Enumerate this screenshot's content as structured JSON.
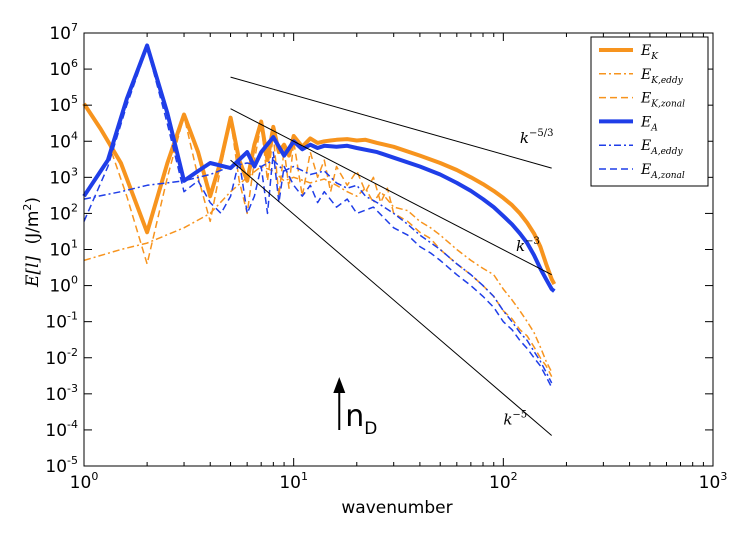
{
  "chart_data": {
    "type": "line",
    "xscale": "log",
    "yscale": "log",
    "xlabel": "wavenumber",
    "ylabel_math": "E[l]",
    "ylabel_unit": "(J/m",
    "ylabel_unit_exp": "2",
    "ylabel_unit_close": ")",
    "xlim": [
      1,
      1000
    ],
    "ylim": [
      1e-05,
      10000000.0
    ],
    "x_ticks": [
      {
        "value": 1,
        "base": "10",
        "exp": "0"
      },
      {
        "value": 10,
        "base": "10",
        "exp": "1"
      },
      {
        "value": 100,
        "base": "10",
        "exp": "2"
      },
      {
        "value": 1000,
        "base": "10",
        "exp": "3"
      }
    ],
    "y_ticks": [
      {
        "value": 1e-05,
        "base": "10",
        "exp": "-5"
      },
      {
        "value": 0.0001,
        "base": "10",
        "exp": "-4"
      },
      {
        "value": 0.001,
        "base": "10",
        "exp": "-3"
      },
      {
        "value": 0.01,
        "base": "10",
        "exp": "-2"
      },
      {
        "value": 0.1,
        "base": "10",
        "exp": "-1"
      },
      {
        "value": 1,
        "base": "10",
        "exp": "0"
      },
      {
        "value": 10,
        "base": "10",
        "exp": "1"
      },
      {
        "value": 100,
        "base": "10",
        "exp": "2"
      },
      {
        "value": 1000,
        "base": "10",
        "exp": "3"
      },
      {
        "value": 10000,
        "base": "10",
        "exp": "4"
      },
      {
        "value": 100000,
        "base": "10",
        "exp": "5"
      },
      {
        "value": 1000000,
        "base": "10",
        "exp": "6"
      },
      {
        "value": 10000000,
        "base": "10",
        "exp": "7"
      }
    ],
    "legend_position": "top-right",
    "series": [
      {
        "key": "ek",
        "name_base": "E",
        "name_sub": "K",
        "color": "#f7941e",
        "style": "solid",
        "width": 4,
        "points": [
          [
            1,
            110000.0
          ],
          [
            1.2,
            22000.0
          ],
          [
            1.5,
            2500.0
          ],
          [
            2,
            30
          ],
          [
            2.5,
            2500.0
          ],
          [
            3,
            55000.0
          ],
          [
            3.5,
            5000.0
          ],
          [
            4,
            300
          ],
          [
            4.5,
            3000.0
          ],
          [
            5,
            45000.0
          ],
          [
            5.5,
            3000.0
          ],
          [
            6,
            800
          ],
          [
            6.5,
            8000.0
          ],
          [
            7,
            35000.0
          ],
          [
            7.5,
            3000.0
          ],
          [
            8,
            25000.0
          ],
          [
            8.5,
            5000.0
          ],
          [
            9,
            8000.0
          ],
          [
            9.5,
            4000.0
          ],
          [
            10,
            14000.0
          ],
          [
            11,
            7000.0
          ],
          [
            12,
            12000.0
          ],
          [
            13,
            9000.0
          ],
          [
            14,
            10000.0
          ],
          [
            15,
            10500.0
          ],
          [
            16,
            11000.0
          ],
          [
            18,
            11500.0
          ],
          [
            20,
            10500.0
          ],
          [
            22,
            11000.0
          ],
          [
            25,
            9000.0
          ],
          [
            30,
            7000.0
          ],
          [
            40,
            4000.0
          ],
          [
            50,
            2500.0
          ],
          [
            60,
            1600.0
          ],
          [
            70,
            1000.0
          ],
          [
            80,
            650
          ],
          [
            90,
            420
          ],
          [
            100,
            270
          ],
          [
            110,
            170
          ],
          [
            120,
            100
          ],
          [
            130,
            55
          ],
          [
            140,
            28
          ],
          [
            150,
            12
          ],
          [
            160,
            4
          ],
          [
            170,
            1.5
          ],
          [
            175,
            1.1
          ]
        ]
      },
      {
        "key": "ek_eddy",
        "name_base": "E",
        "name_sub": "K,eddy",
        "color": "#f7941e",
        "style": "dashdot",
        "width": 1.5,
        "points": [
          [
            1,
            5
          ],
          [
            1.5,
            10
          ],
          [
            2,
            15
          ],
          [
            3,
            40
          ],
          [
            4,
            100
          ],
          [
            5,
            400
          ],
          [
            6,
            1000.0
          ],
          [
            7,
            2000.0
          ],
          [
            8,
            1500.0
          ],
          [
            9,
            800
          ],
          [
            10,
            1000.0
          ],
          [
            12,
            700
          ],
          [
            14,
            900
          ],
          [
            16,
            600
          ],
          [
            18,
            400
          ],
          [
            20,
            300
          ],
          [
            22,
            500
          ],
          [
            24,
            200
          ],
          [
            26,
            400
          ],
          [
            30,
            150
          ],
          [
            35,
            120
          ],
          [
            40,
            60
          ],
          [
            45,
            40
          ],
          [
            50,
            25
          ],
          [
            60,
            10
          ],
          [
            70,
            5
          ],
          [
            80,
            3
          ],
          [
            90,
            2
          ],
          [
            100,
            0.8
          ],
          [
            110,
            0.4
          ],
          [
            120,
            0.2
          ],
          [
            130,
            0.1
          ],
          [
            140,
            0.05
          ],
          [
            150,
            0.02
          ],
          [
            160,
            0.008
          ],
          [
            170,
            0.004
          ]
        ]
      },
      {
        "key": "ek_zonal",
        "name_base": "E",
        "name_sub": "K,zonal",
        "color": "#f7941e",
        "style": "dashed",
        "width": 1.5,
        "points": [
          [
            1,
            100000.0
          ],
          [
            1.3,
            10000.0
          ],
          [
            1.6,
            300
          ],
          [
            2,
            4
          ],
          [
            2.5,
            1000.0
          ],
          [
            3,
            50000.0
          ],
          [
            3.5,
            1000.0
          ],
          [
            4,
            60
          ],
          [
            4.5,
            2000.0
          ],
          [
            5,
            40000.0
          ],
          [
            5.5,
            800
          ],
          [
            6,
            100
          ],
          [
            6.5,
            3000.0
          ],
          [
            7,
            30000.0
          ],
          [
            7.5,
            800
          ],
          [
            8,
            15000.0
          ],
          [
            8.5,
            300
          ],
          [
            9,
            6000.0
          ],
          [
            9.5,
            500
          ],
          [
            10,
            10000.0
          ],
          [
            11,
            300
          ],
          [
            12,
            5000.0
          ],
          [
            13,
            1000.0
          ],
          [
            14,
            3000.0
          ],
          [
            15,
            400
          ],
          [
            16,
            2000.0
          ],
          [
            18,
            600
          ],
          [
            20,
            1500.0
          ],
          [
            22,
            400
          ],
          [
            24,
            1000.0
          ],
          [
            26,
            200
          ],
          [
            28,
            500
          ],
          [
            30,
            100
          ],
          [
            35,
            60
          ],
          [
            40,
            30
          ],
          [
            45,
            20
          ],
          [
            50,
            10
          ],
          [
            60,
            4
          ],
          [
            70,
            2
          ],
          [
            80,
            1
          ],
          [
            90,
            0.5
          ],
          [
            100,
            0.2
          ],
          [
            110,
            0.12
          ],
          [
            120,
            0.06
          ],
          [
            130,
            0.04
          ],
          [
            140,
            0.02
          ],
          [
            150,
            0.01
          ],
          [
            160,
            0.006
          ],
          [
            170,
            0.003
          ]
        ]
      },
      {
        "key": "ea",
        "name_base": "E",
        "name_sub": "A",
        "color": "#1f3ee8",
        "style": "solid",
        "width": 4,
        "points": [
          [
            1,
            300
          ],
          [
            1.3,
            3000.0
          ],
          [
            1.6,
            150000.0
          ],
          [
            2,
            4500000.0
          ],
          [
            2.5,
            60000.0
          ],
          [
            3,
            800
          ],
          [
            3.5,
            1500.0
          ],
          [
            4,
            2500.0
          ],
          [
            5,
            1800.0
          ],
          [
            6,
            5000.0
          ],
          [
            6.5,
            2000.0
          ],
          [
            7,
            5000.0
          ],
          [
            8,
            13000.0
          ],
          [
            9,
            4000.0
          ],
          [
            10,
            10000.0
          ],
          [
            11,
            6000.0
          ],
          [
            12,
            8000.0
          ],
          [
            13,
            6500.0
          ],
          [
            14,
            7500.0
          ],
          [
            16,
            7000.0
          ],
          [
            18,
            7500.0
          ],
          [
            20,
            6500.0
          ],
          [
            25,
            5000.0
          ],
          [
            30,
            3500.0
          ],
          [
            40,
            2000.0
          ],
          [
            50,
            1200.0
          ],
          [
            60,
            700
          ],
          [
            70,
            420
          ],
          [
            80,
            250
          ],
          [
            90,
            150
          ],
          [
            100,
            85
          ],
          [
            110,
            50
          ],
          [
            120,
            28
          ],
          [
            130,
            15
          ],
          [
            140,
            7
          ],
          [
            150,
            3
          ],
          [
            160,
            1.5
          ],
          [
            170,
            0.8
          ],
          [
            175,
            0.7
          ]
        ]
      },
      {
        "key": "ea_eddy",
        "name_base": "E",
        "name_sub": "A,eddy",
        "color": "#1f3ee8",
        "style": "dashdot",
        "width": 1.5,
        "points": [
          [
            1,
            250
          ],
          [
            1.5,
            400
          ],
          [
            2,
            600
          ],
          [
            3,
            800
          ],
          [
            4,
            1200.0
          ],
          [
            5,
            2000.0
          ],
          [
            6,
            2500.0
          ],
          [
            7,
            2000.0
          ],
          [
            8,
            3000.0
          ],
          [
            9,
            1500.0
          ],
          [
            10,
            2000.0
          ],
          [
            12,
            1200.0
          ],
          [
            14,
            1500.0
          ],
          [
            16,
            700
          ],
          [
            18,
            500
          ],
          [
            20,
            600
          ],
          [
            22,
            300
          ],
          [
            25,
            200
          ],
          [
            30,
            100
          ],
          [
            35,
            50
          ],
          [
            40,
            25
          ],
          [
            50,
            10
          ],
          [
            60,
            4
          ],
          [
            70,
            2
          ],
          [
            80,
            1
          ],
          [
            90,
            0.5
          ],
          [
            100,
            0.2
          ],
          [
            110,
            0.1
          ],
          [
            120,
            0.05
          ],
          [
            130,
            0.03
          ],
          [
            140,
            0.015
          ],
          [
            150,
            0.008
          ],
          [
            160,
            0.004
          ],
          [
            170,
            0.002
          ]
        ]
      },
      {
        "key": "ea_zonal",
        "name_base": "E",
        "name_sub": "A,zonal",
        "color": "#1f3ee8",
        "style": "dashed",
        "width": 1.5,
        "points": [
          [
            1,
            60
          ],
          [
            1.3,
            2000.0
          ],
          [
            1.6,
            100000.0
          ],
          [
            2,
            4000000.0
          ],
          [
            2.5,
            30000.0
          ],
          [
            3,
            400
          ],
          [
            3.5,
            800
          ],
          [
            4,
            200
          ],
          [
            4.5,
            100
          ],
          [
            5,
            300
          ],
          [
            5.5,
            3000.0
          ],
          [
            6,
            100
          ],
          [
            6.5,
            300
          ],
          [
            7,
            2000.0
          ],
          [
            7.5,
            100
          ],
          [
            8,
            5000.0
          ],
          [
            8.5,
            200
          ],
          [
            9,
            2000.0
          ],
          [
            10,
            600
          ],
          [
            11,
            300
          ],
          [
            12,
            600
          ],
          [
            13,
            200
          ],
          [
            14,
            400
          ],
          [
            16,
            150
          ],
          [
            18,
            250
          ],
          [
            20,
            100
          ],
          [
            24,
            150
          ],
          [
            28,
            60
          ],
          [
            30,
            40
          ],
          [
            35,
            25
          ],
          [
            40,
            12
          ],
          [
            45,
            8
          ],
          [
            50,
            5
          ],
          [
            60,
            2
          ],
          [
            70,
            1
          ],
          [
            80,
            0.5
          ],
          [
            90,
            0.25
          ],
          [
            100,
            0.1
          ],
          [
            110,
            0.06
          ],
          [
            120,
            0.03
          ],
          [
            130,
            0.018
          ],
          [
            140,
            0.01
          ],
          [
            150,
            0.006
          ],
          [
            160,
            0.003
          ],
          [
            170,
            0.0015
          ]
        ]
      }
    ],
    "reference_lines": [
      {
        "key": "k53",
        "x": [
          5,
          170
        ],
        "y": [
          600000.0,
          1800.0
        ],
        "label_base": "k",
        "label_exp": "−5/3",
        "label_at": [
          120,
          9000.0
        ]
      },
      {
        "key": "k3",
        "x": [
          5,
          170
        ],
        "y": [
          80000.0,
          2
        ],
        "label_base": "k",
        "label_exp": "−3",
        "label_at": [
          115,
          9
        ]
      },
      {
        "key": "k5",
        "x": [
          5,
          170
        ],
        "y": [
          3000.0,
          7e-05
        ],
        "label_base": "k",
        "label_exp": "−5",
        "label_at": [
          100,
          0.00014
        ]
      }
    ],
    "annotation": {
      "text": "n",
      "sub": "D",
      "x": 16.5
    }
  }
}
